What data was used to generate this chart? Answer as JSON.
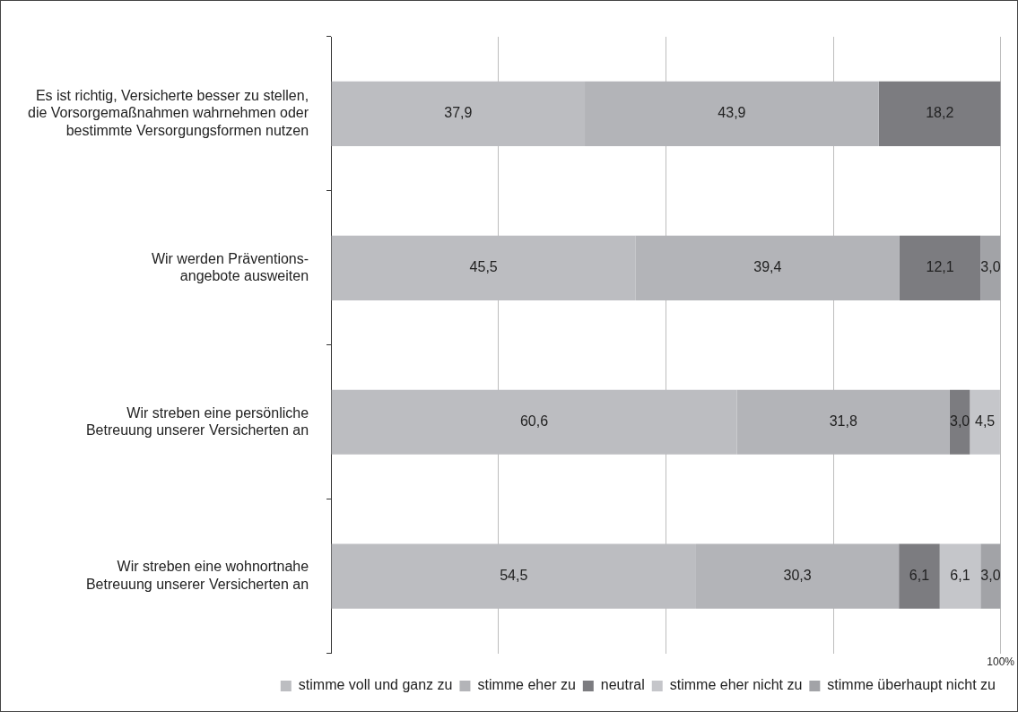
{
  "chart_data": {
    "type": "bar",
    "orientation": "horizontal",
    "stacked": true,
    "categories": [
      "Es ist richtig, Versicherte besser zu stellen,\ndie Vorsorgemaßnahmen wahrnehmen oder\nbestimmte Versorgungsformen nutzen",
      "Wir werden Präventions-\nangebote ausweiten",
      "Wir streben eine persönliche\nBetreuung unserer Versicherten an",
      "Wir streben eine wohnortnahe\nBetreuung unserer Versicherten an"
    ],
    "series": [
      {
        "name": "stimme voll und ganz zu",
        "color": "#bcbdc1",
        "values": [
          37.9,
          45.5,
          60.6,
          54.5
        ],
        "value_labels": [
          "37,9",
          "45,5",
          "60,6",
          "54,5"
        ]
      },
      {
        "name": "stimme eher zu",
        "color": "#b3b4b8",
        "values": [
          43.9,
          39.4,
          31.8,
          30.3
        ],
        "value_labels": [
          "43,9",
          "39,4",
          "31,8",
          "30,3"
        ]
      },
      {
        "name": "neutral",
        "color": "#7c7c80",
        "values": [
          18.2,
          12.1,
          3.0,
          6.1
        ],
        "value_labels": [
          "18,2",
          "12,1",
          "3,0",
          "6,1"
        ]
      },
      {
        "name": "stimme eher nicht zu",
        "color": "#c5c6ca",
        "values": [
          null,
          null,
          4.5,
          6.1
        ],
        "value_labels": [
          null,
          null,
          "4,5",
          "6,1"
        ]
      },
      {
        "name": "stimme überhaupt nicht zu",
        "color": "#a2a3a7",
        "values": [
          null,
          3.0,
          null,
          3.0
        ],
        "value_labels": [
          null,
          "3,0",
          null,
          "3,0"
        ]
      }
    ],
    "xlim": [
      0,
      100
    ],
    "xticks": [
      {
        "value": 0,
        "label": null
      },
      {
        "value": 25,
        "label": null
      },
      {
        "value": 50,
        "label": null
      },
      {
        "value": 75,
        "label": null
      },
      {
        "value": 100,
        "label": "100%"
      }
    ],
    "grid": "x",
    "legend": "bottom"
  }
}
